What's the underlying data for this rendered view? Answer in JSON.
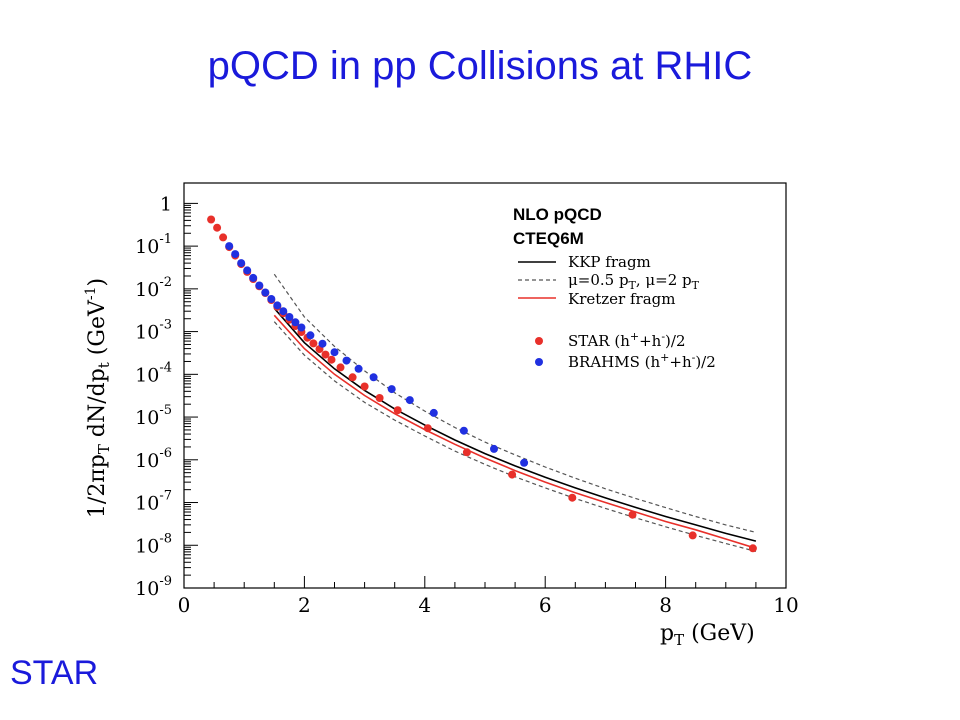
{
  "slide": {
    "title": "pQCD in pp Collisions at RHIC",
    "logo_text": "STAR"
  },
  "colors": {
    "title": "#1a1adb",
    "star": "#e8302a",
    "brahms": "#2030e0",
    "kkp": "#000000",
    "scale_band": "#555555",
    "kretzer": "#e8302a"
  },
  "chart_data": {
    "type": "scatter",
    "log_y": true,
    "xlim": [
      0,
      10
    ],
    "ylim": [
      1e-09,
      3
    ],
    "xlabel": "p_T (GeV)",
    "ylabel": "1/2πp_T dN/dp_t (GeV^-1)",
    "x_ticks": [
      0,
      2,
      4,
      6,
      8,
      10
    ],
    "x_tick_labels": [
      "0",
      "2",
      "4",
      "6",
      "8",
      "10"
    ],
    "y_ticks": [
      1e-09,
      1e-08,
      1e-07,
      1e-06,
      1e-05,
      0.0001,
      0.001,
      0.01,
      0.1,
      1
    ],
    "y_tick_labels": [
      {
        "base": "10",
        "exp": "-9"
      },
      {
        "base": "10",
        "exp": "-8"
      },
      {
        "base": "10",
        "exp": "-7"
      },
      {
        "base": "10",
        "exp": "-6"
      },
      {
        "base": "10",
        "exp": "-5"
      },
      {
        "base": "10",
        "exp": "-4"
      },
      {
        "base": "10",
        "exp": "-3"
      },
      {
        "base": "10",
        "exp": "-2"
      },
      {
        "base": "10",
        "exp": "-1"
      },
      {
        "base": "1",
        "exp": ""
      }
    ],
    "legend": {
      "placement": "top-right",
      "header": [
        "NLO pQCD",
        "CTEQ6M"
      ],
      "line_entries": [
        "KKP fragm",
        "μ=0.5 p_T, μ=2 p_T",
        "Kretzer fragm"
      ],
      "marker_entries": [
        "STAR (h⁺+h⁻)/2",
        "BRAHMS (h⁺+h⁻)/2"
      ]
    },
    "series": [
      {
        "name": "STAR (h⁺+h⁻)/2",
        "kind": "points",
        "x": [
          0.45,
          0.55,
          0.65,
          0.75,
          0.85,
          0.95,
          1.05,
          1.15,
          1.25,
          1.35,
          1.45,
          1.55,
          1.65,
          1.75,
          1.85,
          1.95,
          2.05,
          2.15,
          2.25,
          2.35,
          2.45,
          2.6,
          2.8,
          3.0,
          3.25,
          3.55,
          4.05,
          4.7,
          5.45,
          6.45,
          7.45,
          8.45,
          9.45
        ],
        "y": [
          0.42,
          0.27,
          0.16,
          0.095,
          0.06,
          0.038,
          0.025,
          0.017,
          0.0115,
          0.008,
          0.0055,
          0.0038,
          0.0027,
          0.0019,
          0.00135,
          0.00098,
          0.00072,
          0.00053,
          0.00039,
          0.00029,
          0.00022,
          0.000145,
          8.5e-05,
          5.2e-05,
          2.8e-05,
          1.45e-05,
          5.5e-06,
          1.5e-06,
          4.5e-07,
          1.3e-07,
          5.2e-08,
          1.7e-08,
          8.5e-09
        ]
      },
      {
        "name": "BRAHMS (h⁺+h⁻)/2",
        "kind": "points",
        "x": [
          0.75,
          0.85,
          0.95,
          1.05,
          1.15,
          1.25,
          1.35,
          1.45,
          1.55,
          1.65,
          1.75,
          1.85,
          1.95,
          2.1,
          2.3,
          2.5,
          2.7,
          2.9,
          3.15,
          3.45,
          3.75,
          4.15,
          4.65,
          5.15,
          5.65
        ],
        "y": [
          0.1,
          0.065,
          0.04,
          0.027,
          0.018,
          0.012,
          0.0082,
          0.0058,
          0.0041,
          0.003,
          0.0022,
          0.00165,
          0.00125,
          0.00082,
          0.00052,
          0.00033,
          0.00021,
          0.000135,
          8.5e-05,
          4.5e-05,
          2.5e-05,
          1.25e-05,
          4.8e-06,
          1.8e-06,
          8.5e-07
        ]
      },
      {
        "name": "KKP fragm",
        "kind": "line",
        "style": "solid",
        "x": [
          1.5,
          2,
          2.5,
          3,
          3.5,
          4,
          4.5,
          5,
          5.5,
          6,
          6.5,
          7,
          7.5,
          8,
          8.5,
          9,
          9.5
        ],
        "y": [
          0.0035,
          0.00055,
          0.000135,
          4.2e-05,
          1.55e-05,
          6.5e-06,
          2.9e-06,
          1.4e-06,
          7.2e-07,
          3.9e-07,
          2.2e-07,
          1.28e-07,
          7.7e-08,
          4.7e-08,
          3e-08,
          1.9e-08,
          1.25e-08
        ]
      },
      {
        "name": "μ=0.5 p_T",
        "kind": "line",
        "style": "dashed",
        "x": [
          1.5,
          2,
          2.5,
          3,
          3.5,
          4,
          4.5,
          5,
          5.5,
          6,
          6.5,
          7,
          7.5,
          8,
          8.5,
          9,
          9.5
        ],
        "y": [
          0.022,
          0.0022,
          0.00045,
          0.00012,
          3.7e-05,
          1.38e-05,
          5.7e-06,
          2.6e-06,
          1.3e-06,
          6.8e-07,
          3.7e-07,
          2.1e-07,
          1.25e-07,
          7.6e-08,
          4.7e-08,
          3e-08,
          2e-08
        ]
      },
      {
        "name": "μ=2 p_T",
        "kind": "line",
        "style": "dashed",
        "x": [
          1.5,
          2,
          2.5,
          3,
          3.5,
          4,
          4.5,
          5,
          5.5,
          6,
          6.5,
          7,
          7.5,
          8,
          8.5,
          9,
          9.5
        ],
        "y": [
          0.0017,
          0.00028,
          7e-05,
          2.2e-05,
          8.5e-06,
          3.6e-06,
          1.6e-06,
          7.8e-07,
          4e-07,
          2.2e-07,
          1.24e-07,
          7.3e-08,
          4.4e-08,
          2.7e-08,
          1.7e-08,
          1.1e-08,
          7.2e-09
        ]
      },
      {
        "name": "Kretzer fragm",
        "kind": "line",
        "style": "solid",
        "x": [
          1.5,
          2,
          2.5,
          3,
          3.5,
          4,
          4.5,
          5,
          5.5,
          6,
          6.5,
          7,
          7.5,
          8,
          8.5,
          9,
          9.5
        ],
        "y": [
          0.0024,
          0.0004,
          0.0001,
          3.2e-05,
          1.2e-05,
          5.1e-06,
          2.3e-06,
          1.1e-06,
          5.6e-07,
          3e-07,
          1.7e-07,
          1e-07,
          6e-08,
          3.6e-08,
          2.3e-08,
          1.4e-08,
          8.5e-09
        ]
      }
    ]
  }
}
